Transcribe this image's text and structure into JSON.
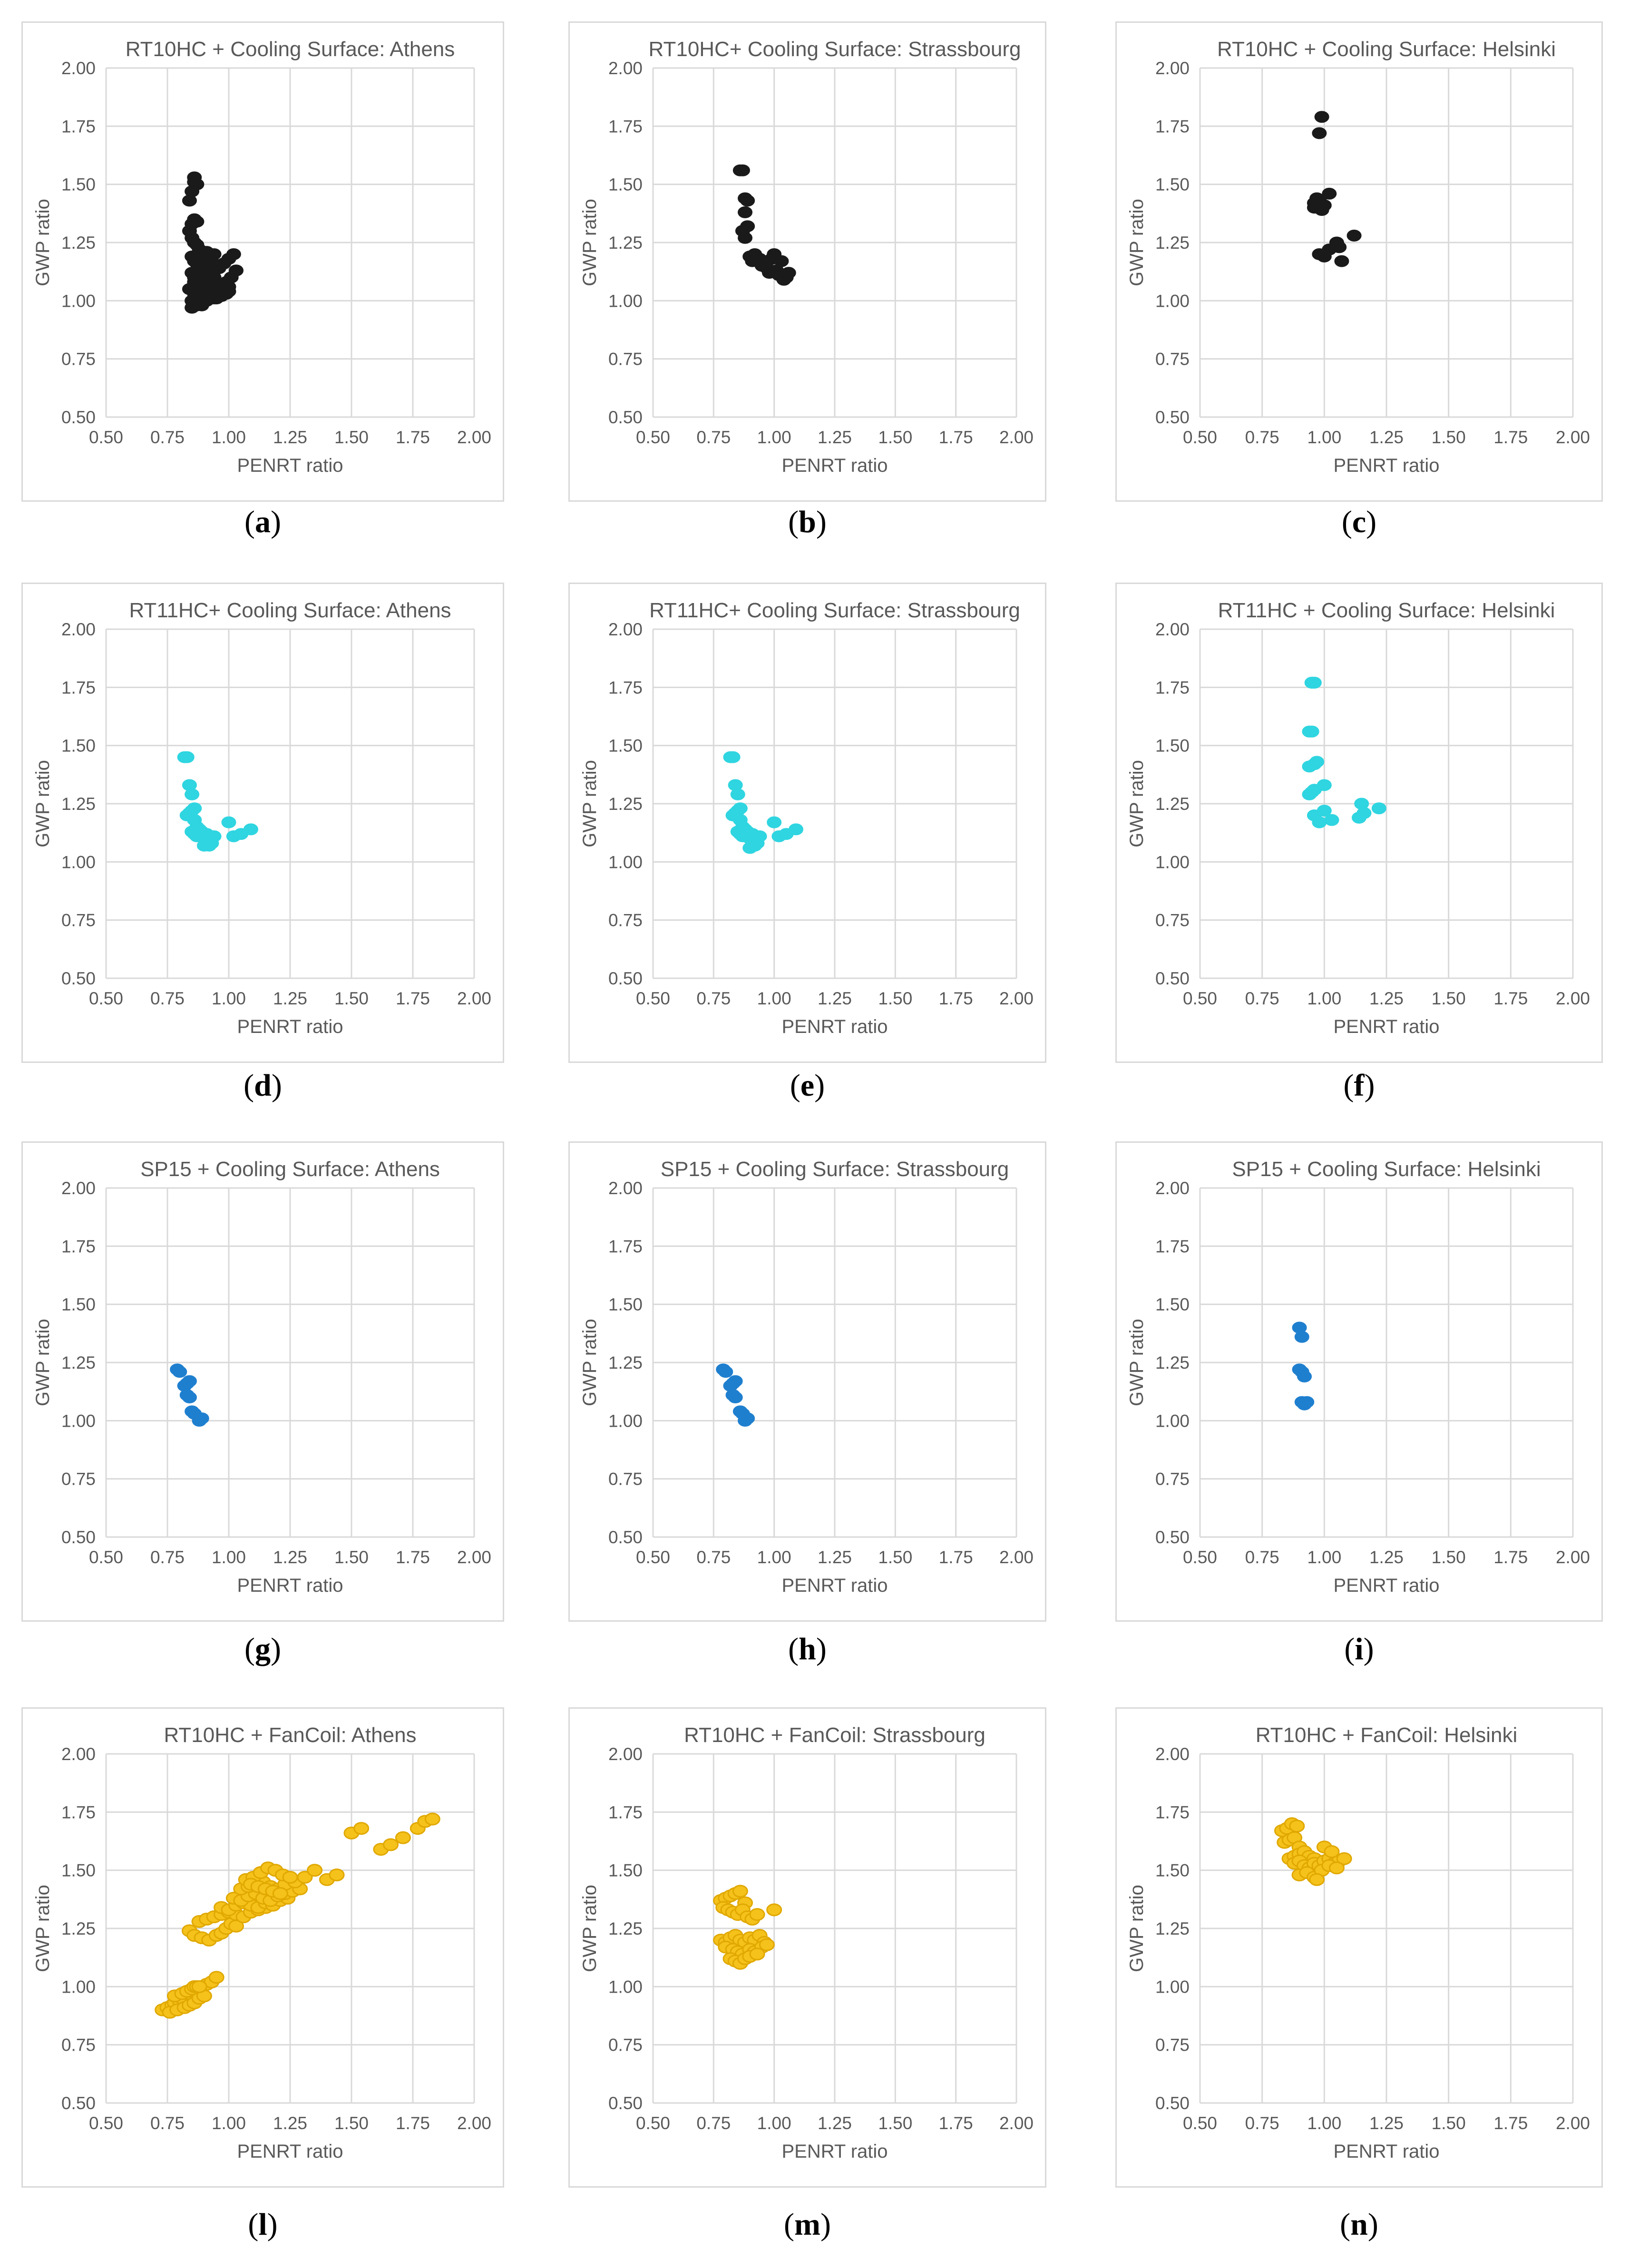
{
  "colors": {
    "black": "#1a1a1a",
    "cyan": "#2fd5e0",
    "blue": "#1f7fcf",
    "yellow": "#f5c21b",
    "grid": "#d9d9d9",
    "text": "#595959"
  },
  "axis": {
    "xlabel": "PENRT ratio",
    "ylabel": "GWP ratio",
    "xlim": [
      0.5,
      2.0
    ],
    "ylim": [
      0.5,
      2.0
    ],
    "ticks": [
      "0.50",
      "0.75",
      "1.00",
      "1.25",
      "1.50",
      "1.75",
      "2.00"
    ]
  },
  "chart_data": [
    {
      "type": "scatter",
      "label": "a",
      "title": "RT10HC + Cooling Surface: Athens",
      "color": "black",
      "x": [
        0.84,
        0.85,
        0.86,
        0.86,
        0.87,
        0.84,
        0.85,
        0.86,
        0.87,
        0.85,
        0.86,
        0.87,
        0.88,
        0.89,
        0.9,
        0.91,
        0.92,
        0.85,
        0.86,
        0.87,
        0.88,
        0.89,
        0.9,
        0.91,
        0.92,
        0.93,
        0.94,
        0.85,
        0.86,
        0.88,
        0.9,
        0.92,
        0.94,
        0.96,
        0.98,
        1.0,
        1.02,
        0.86,
        0.88,
        0.9,
        0.92,
        0.95,
        0.97,
        0.99,
        1.01,
        0.84,
        0.86,
        0.88,
        0.9,
        0.93,
        0.96,
        0.98,
        1.0,
        0.85,
        0.87,
        0.89,
        0.91,
        0.94,
        0.97,
        0.99,
        0.85,
        0.87,
        0.89,
        0.95,
        0.98,
        1.0,
        1.03
      ],
      "y": [
        1.43,
        1.47,
        1.51,
        1.53,
        1.5,
        1.3,
        1.33,
        1.35,
        1.34,
        1.27,
        1.25,
        1.24,
        1.22,
        1.2,
        1.19,
        1.21,
        1.18,
        1.19,
        1.17,
        1.16,
        1.15,
        1.18,
        1.14,
        1.16,
        1.15,
        1.17,
        1.2,
        1.12,
        1.1,
        1.11,
        1.13,
        1.12,
        1.1,
        1.14,
        1.16,
        1.18,
        1.2,
        1.08,
        1.07,
        1.06,
        1.09,
        1.07,
        1.05,
        1.08,
        1.1,
        1.05,
        1.03,
        1.04,
        1.02,
        1.05,
        1.03,
        1.06,
        1.04,
        1.0,
        0.99,
        0.98,
        1.0,
        1.01,
        1.02,
        1.03,
        0.97,
        0.98,
        0.99,
        1.01,
        1.04,
        1.06,
        1.13
      ]
    },
    {
      "type": "scatter",
      "label": "b",
      "title": "RT10HC+ Cooling Surface: Strassbourg",
      "color": "black",
      "x": [
        0.86,
        0.87,
        0.88,
        0.89,
        0.88,
        0.87,
        0.88,
        0.89,
        0.9,
        0.91,
        0.92,
        0.94,
        0.95,
        0.96,
        0.97,
        0.98,
        0.99,
        1.0,
        1.01,
        1.02,
        1.03,
        1.04,
        1.05,
        1.06
      ],
      "y": [
        1.56,
        1.56,
        1.44,
        1.43,
        1.38,
        1.3,
        1.27,
        1.32,
        1.19,
        1.17,
        1.2,
        1.18,
        1.15,
        1.16,
        1.14,
        1.12,
        1.18,
        1.2,
        1.13,
        1.11,
        1.17,
        1.09,
        1.1,
        1.12
      ]
    },
    {
      "type": "scatter",
      "label": "c",
      "title": "RT10HC + Cooling Surface: Helsinki",
      "color": "black",
      "x": [
        0.99,
        0.98,
        0.96,
        0.97,
        0.98,
        0.99,
        1.0,
        1.02,
        0.96,
        0.97,
        0.98,
        1.0,
        1.02,
        1.05,
        1.06,
        1.12,
        1.07
      ],
      "y": [
        1.79,
        1.72,
        1.42,
        1.44,
        1.43,
        1.39,
        1.41,
        1.46,
        1.4,
        1.41,
        1.2,
        1.19,
        1.22,
        1.25,
        1.23,
        1.28,
        1.17
      ]
    },
    {
      "type": "scatter",
      "label": "d",
      "title": "RT11HC+ Cooling Surface: Athens",
      "color": "cyan",
      "x": [
        0.82,
        0.83,
        0.84,
        0.85,
        0.86,
        0.83,
        0.84,
        0.85,
        0.86,
        0.87,
        0.85,
        0.86,
        0.87,
        0.88,
        0.89,
        0.9,
        0.91,
        0.92,
        0.93,
        0.94,
        0.9,
        0.92,
        1.0,
        1.02,
        1.05,
        1.09
      ],
      "y": [
        1.45,
        1.45,
        1.33,
        1.29,
        1.23,
        1.2,
        1.21,
        1.22,
        1.18,
        1.15,
        1.13,
        1.12,
        1.11,
        1.14,
        1.13,
        1.1,
        1.12,
        1.09,
        1.08,
        1.11,
        1.07,
        1.07,
        1.17,
        1.11,
        1.12,
        1.14
      ]
    },
    {
      "type": "scatter",
      "label": "e",
      "title": "RT11HC+ Cooling Surface: Strassbourg",
      "color": "cyan",
      "x": [
        0.82,
        0.83,
        0.84,
        0.85,
        0.86,
        0.83,
        0.84,
        0.85,
        0.86,
        0.87,
        0.85,
        0.86,
        0.87,
        0.88,
        0.89,
        0.9,
        0.91,
        0.92,
        0.93,
        0.94,
        0.9,
        0.92,
        1.0,
        1.02,
        1.05,
        1.09
      ],
      "y": [
        1.45,
        1.45,
        1.33,
        1.29,
        1.23,
        1.2,
        1.21,
        1.22,
        1.18,
        1.15,
        1.13,
        1.12,
        1.11,
        1.14,
        1.13,
        1.1,
        1.12,
        1.09,
        1.08,
        1.11,
        1.06,
        1.07,
        1.17,
        1.11,
        1.12,
        1.14
      ]
    },
    {
      "type": "scatter",
      "label": "f",
      "title": "RT11HC + Cooling Surface: Helsinki",
      "color": "cyan",
      "x": [
        0.95,
        0.96,
        0.94,
        0.95,
        0.94,
        0.96,
        0.97,
        0.94,
        0.95,
        0.96,
        1.0,
        0.96,
        0.98,
        1.0,
        1.03,
        1.15,
        1.16,
        1.22,
        1.14
      ],
      "y": [
        1.77,
        1.77,
        1.56,
        1.56,
        1.41,
        1.42,
        1.43,
        1.29,
        1.3,
        1.31,
        1.33,
        1.2,
        1.17,
        1.22,
        1.18,
        1.25,
        1.21,
        1.23,
        1.19
      ]
    },
    {
      "type": "scatter",
      "label": "g",
      "title": "SP15 + Cooling Surface: Athens",
      "color": "blue",
      "x": [
        0.79,
        0.8,
        0.82,
        0.83,
        0.84,
        0.83,
        0.84,
        0.85,
        0.86,
        0.88,
        0.89
      ],
      "y": [
        1.22,
        1.21,
        1.15,
        1.16,
        1.17,
        1.11,
        1.1,
        1.04,
        1.03,
        1.0,
        1.01
      ]
    },
    {
      "type": "scatter",
      "label": "h",
      "title": "SP15 + Cooling Surface: Strassbourg",
      "color": "blue",
      "x": [
        0.79,
        0.8,
        0.82,
        0.83,
        0.84,
        0.83,
        0.84,
        0.86,
        0.87,
        0.88,
        0.89
      ],
      "y": [
        1.22,
        1.21,
        1.15,
        1.16,
        1.17,
        1.11,
        1.1,
        1.04,
        1.03,
        1.0,
        1.01
      ]
    },
    {
      "type": "scatter",
      "label": "i",
      "title": "SP15 + Cooling Surface: Helsinki",
      "color": "blue",
      "x": [
        0.9,
        0.91,
        0.9,
        0.91,
        0.92,
        0.91,
        0.92,
        0.93
      ],
      "y": [
        1.4,
        1.36,
        1.22,
        1.21,
        1.19,
        1.08,
        1.07,
        1.08
      ]
    },
    {
      "type": "scatter",
      "label": "l",
      "title": "RT10HC + FanCoil: Athens",
      "color": "yellow",
      "x": [
        0.73,
        0.75,
        0.77,
        0.78,
        0.8,
        0.81,
        0.83,
        0.85,
        0.87,
        0.89,
        0.91,
        0.93,
        0.95,
        0.76,
        0.79,
        0.82,
        0.84,
        0.86,
        0.88,
        0.9,
        0.78,
        0.81,
        0.83,
        0.85,
        0.86,
        0.87,
        0.88,
        0.84,
        0.86,
        0.89,
        0.92,
        0.95,
        0.97,
        0.99,
        1.01,
        1.03,
        0.88,
        0.91,
        0.94,
        0.97,
        1.0,
        1.03,
        1.06,
        1.09,
        1.12,
        1.15,
        0.97,
        1.0,
        1.03,
        1.06,
        1.09,
        1.12,
        1.15,
        1.18,
        1.21,
        1.24,
        1.02,
        1.05,
        1.08,
        1.11,
        1.14,
        1.17,
        1.2,
        1.23,
        1.26,
        1.29,
        1.05,
        1.08,
        1.11,
        1.14,
        1.17,
        1.2,
        1.23,
        1.27,
        1.31,
        1.35,
        1.07,
        1.1,
        1.13,
        1.16,
        1.19,
        1.22,
        1.25,
        1.09,
        1.12,
        1.15,
        1.18,
        1.21,
        1.4,
        1.44,
        1.5,
        1.54,
        1.62,
        1.66,
        1.71,
        1.77,
        1.8,
        1.83
      ],
      "y": [
        0.9,
        0.91,
        0.92,
        0.93,
        0.94,
        0.95,
        0.97,
        0.98,
        0.99,
        1.0,
        1.01,
        1.02,
        1.04,
        0.89,
        0.9,
        0.91,
        0.92,
        0.93,
        0.95,
        0.96,
        0.96,
        0.97,
        0.98,
        0.99,
        1.0,
        1.0,
        1.0,
        1.24,
        1.22,
        1.21,
        1.2,
        1.22,
        1.23,
        1.25,
        1.27,
        1.26,
        1.28,
        1.29,
        1.3,
        1.31,
        1.32,
        1.31,
        1.3,
        1.32,
        1.33,
        1.34,
        1.34,
        1.33,
        1.35,
        1.36,
        1.35,
        1.34,
        1.36,
        1.35,
        1.37,
        1.38,
        1.38,
        1.37,
        1.39,
        1.4,
        1.38,
        1.37,
        1.39,
        1.4,
        1.41,
        1.42,
        1.42,
        1.43,
        1.44,
        1.45,
        1.43,
        1.42,
        1.44,
        1.45,
        1.47,
        1.5,
        1.46,
        1.47,
        1.49,
        1.51,
        1.5,
        1.48,
        1.47,
        1.44,
        1.43,
        1.42,
        1.41,
        1.4,
        1.46,
        1.48,
        1.66,
        1.68,
        1.59,
        1.61,
        1.64,
        1.68,
        1.71,
        1.72
      ]
    },
    {
      "type": "scatter",
      "label": "m",
      "title": "RT10HC + FanCoil: Strassbourg",
      "color": "yellow",
      "x": [
        0.78,
        0.8,
        0.82,
        0.84,
        0.86,
        0.88,
        0.79,
        0.81,
        0.83,
        0.85,
        0.87,
        0.89,
        0.91,
        0.93,
        0.78,
        0.8,
        0.82,
        0.84,
        0.86,
        0.88,
        0.9,
        0.92,
        0.94,
        0.96,
        0.8,
        0.83,
        0.85,
        0.87,
        0.9,
        0.92,
        0.95,
        0.97,
        1.0,
        0.82,
        0.84,
        0.86,
        0.88,
        0.9,
        0.93
      ],
      "y": [
        1.37,
        1.38,
        1.39,
        1.4,
        1.41,
        1.36,
        1.34,
        1.33,
        1.32,
        1.31,
        1.33,
        1.3,
        1.29,
        1.31,
        1.2,
        1.19,
        1.21,
        1.22,
        1.2,
        1.19,
        1.21,
        1.2,
        1.22,
        1.19,
        1.17,
        1.16,
        1.15,
        1.14,
        1.16,
        1.15,
        1.17,
        1.18,
        1.33,
        1.12,
        1.11,
        1.1,
        1.12,
        1.13,
        1.14
      ]
    },
    {
      "type": "scatter",
      "label": "n",
      "title": "RT10HC + FanCoil: Helsinki",
      "color": "yellow",
      "x": [
        0.83,
        0.85,
        0.87,
        0.89,
        0.84,
        0.86,
        0.88,
        0.9,
        0.86,
        0.88,
        0.9,
        0.92,
        0.94,
        0.96,
        0.88,
        0.9,
        0.92,
        0.94,
        0.96,
        0.98,
        1.0,
        1.02,
        1.04,
        1.06,
        1.08,
        0.9,
        0.93,
        0.96,
        0.99,
        1.02,
        1.05,
        0.97,
        1.0,
        1.03
      ],
      "y": [
        1.67,
        1.68,
        1.7,
        1.69,
        1.62,
        1.63,
        1.64,
        1.6,
        1.55,
        1.56,
        1.57,
        1.58,
        1.56,
        1.55,
        1.53,
        1.54,
        1.52,
        1.51,
        1.53,
        1.52,
        1.54,
        1.55,
        1.53,
        1.54,
        1.55,
        1.48,
        1.49,
        1.47,
        1.5,
        1.52,
        1.51,
        1.46,
        1.6,
        1.58
      ]
    }
  ]
}
